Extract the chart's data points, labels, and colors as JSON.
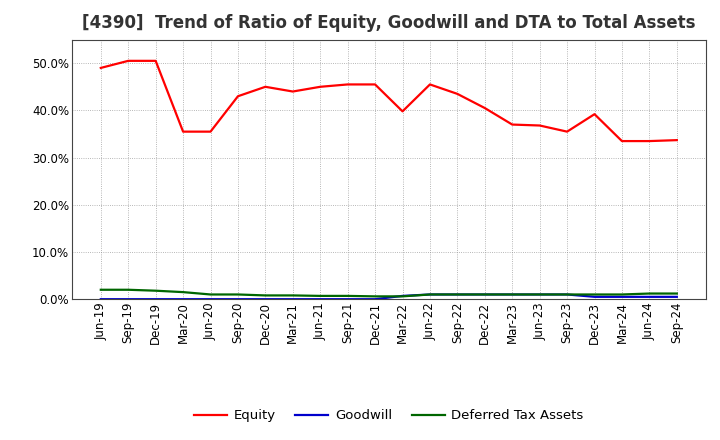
{
  "title": "[4390]  Trend of Ratio of Equity, Goodwill and DTA to Total Assets",
  "x_labels": [
    "Jun-19",
    "Sep-19",
    "Dec-19",
    "Mar-20",
    "Jun-20",
    "Sep-20",
    "Dec-20",
    "Mar-21",
    "Jun-21",
    "Sep-21",
    "Dec-21",
    "Mar-22",
    "Jun-22",
    "Sep-22",
    "Dec-22",
    "Mar-23",
    "Jun-23",
    "Sep-23",
    "Dec-23",
    "Mar-24",
    "Jun-24",
    "Sep-24"
  ],
  "equity": [
    0.49,
    0.505,
    0.505,
    0.355,
    0.355,
    0.43,
    0.45,
    0.44,
    0.45,
    0.455,
    0.455,
    0.398,
    0.455,
    0.435,
    0.405,
    0.37,
    0.368,
    0.355,
    0.392,
    0.335,
    0.335,
    0.337
  ],
  "goodwill": [
    0.0,
    0.0,
    0.0,
    0.0,
    0.0,
    0.0,
    0.0,
    0.0,
    0.0,
    0.0,
    0.0,
    0.007,
    0.01,
    0.01,
    0.01,
    0.01,
    0.01,
    0.01,
    0.005,
    0.005,
    0.005,
    0.005
  ],
  "dta": [
    0.02,
    0.02,
    0.018,
    0.015,
    0.01,
    0.01,
    0.008,
    0.008,
    0.007,
    0.007,
    0.006,
    0.006,
    0.01,
    0.01,
    0.01,
    0.01,
    0.01,
    0.01,
    0.01,
    0.01,
    0.012,
    0.012
  ],
  "equity_color": "#FF0000",
  "goodwill_color": "#0000CC",
  "dta_color": "#006600",
  "background_color": "#FFFFFF",
  "grid_color": "#888888",
  "ylim": [
    0.0,
    0.55
  ],
  "yticks": [
    0.0,
    0.1,
    0.2,
    0.3,
    0.4,
    0.5
  ],
  "legend_labels": [
    "Equity",
    "Goodwill",
    "Deferred Tax Assets"
  ],
  "title_fontsize": 12,
  "tick_fontsize": 8.5,
  "legend_fontsize": 9.5
}
